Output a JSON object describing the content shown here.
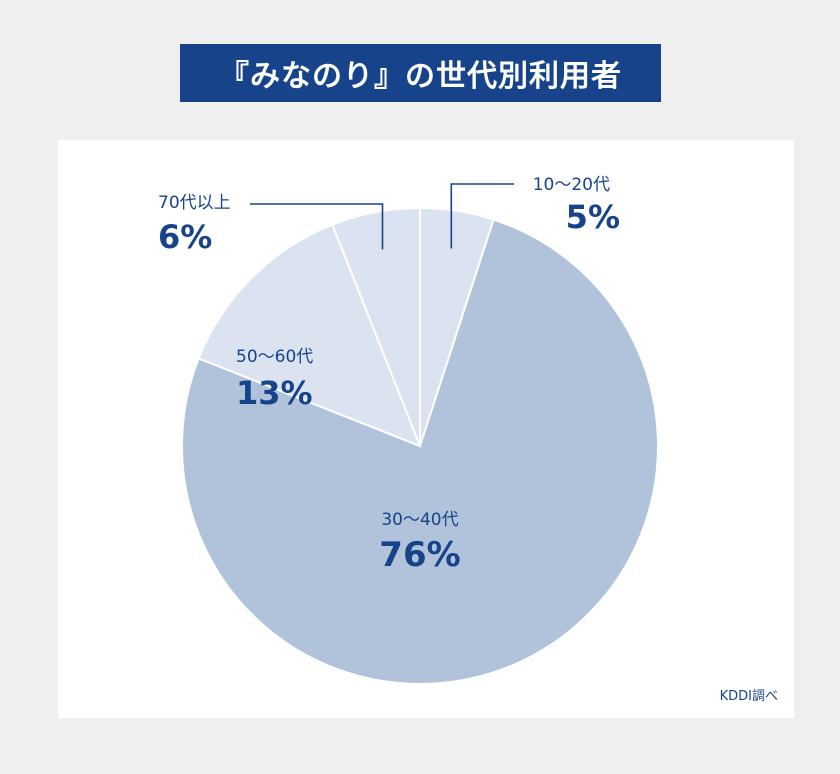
{
  "title": "『みなのり』の世代別利用者",
  "source": "KDDI調べ",
  "colors": {
    "accent": "#16438a",
    "main_slice": "#b1c3da",
    "other_slices": "#dae3ef",
    "background": "#efefef"
  },
  "chart_data": {
    "type": "pie",
    "title": "『みなのり』の世代別利用者",
    "slices": [
      {
        "label": "10～20代",
        "value": 5,
        "value_label": "5%"
      },
      {
        "label": "30～40代",
        "value": 76,
        "value_label": "76%"
      },
      {
        "label": "50～60代",
        "value": 13,
        "value_label": "13%"
      },
      {
        "label": "70代以上",
        "value": 6,
        "value_label": "6%"
      }
    ]
  }
}
